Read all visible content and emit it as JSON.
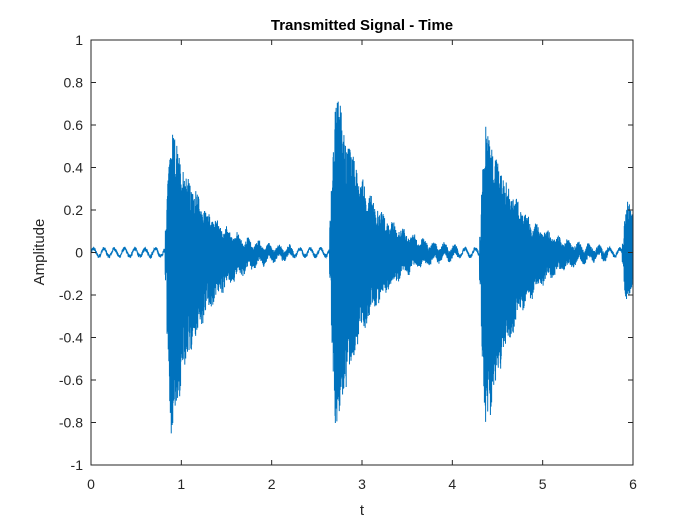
{
  "chart_data": {
    "type": "line",
    "title": "Transmitted Signal - Time",
    "xlabel": "t",
    "ylabel": "Amplitude",
    "xlim": [
      0,
      6
    ],
    "ylim": [
      -1,
      1
    ],
    "xticks": [
      0,
      1,
      2,
      3,
      4,
      5,
      6
    ],
    "yticks": [
      -1,
      -0.8,
      -0.6,
      -0.4,
      -0.2,
      0,
      0.2,
      0.4,
      0.6,
      0.8,
      1
    ],
    "xtick_labels": [
      "0",
      "1",
      "2",
      "3",
      "4",
      "5",
      "6"
    ],
    "ytick_labels": [
      "-1",
      "-0.8",
      "-0.6",
      "-0.4",
      "-0.2",
      "0",
      "0.2",
      "0.4",
      "0.6",
      "0.8",
      "1"
    ],
    "grid": false,
    "series": [
      {
        "color": "#0072BD",
        "baseline_noise_amplitude": 0.03,
        "bursts": [
          {
            "onset_t": 0.84,
            "peak_upper": 0.68,
            "peak_lower": -1.0,
            "decay_s": 0.35
          },
          {
            "onset_t": 2.66,
            "peak_upper": 0.9,
            "peak_lower": -1.0,
            "decay_s": 0.35
          },
          {
            "onset_t": 4.32,
            "peak_upper": 0.71,
            "peak_lower": -1.0,
            "decay_s": 0.35
          },
          {
            "onset_t": 5.9,
            "peak_upper": 0.37,
            "peak_lower": -0.35,
            "decay_s": 0.12
          }
        ]
      }
    ]
  }
}
